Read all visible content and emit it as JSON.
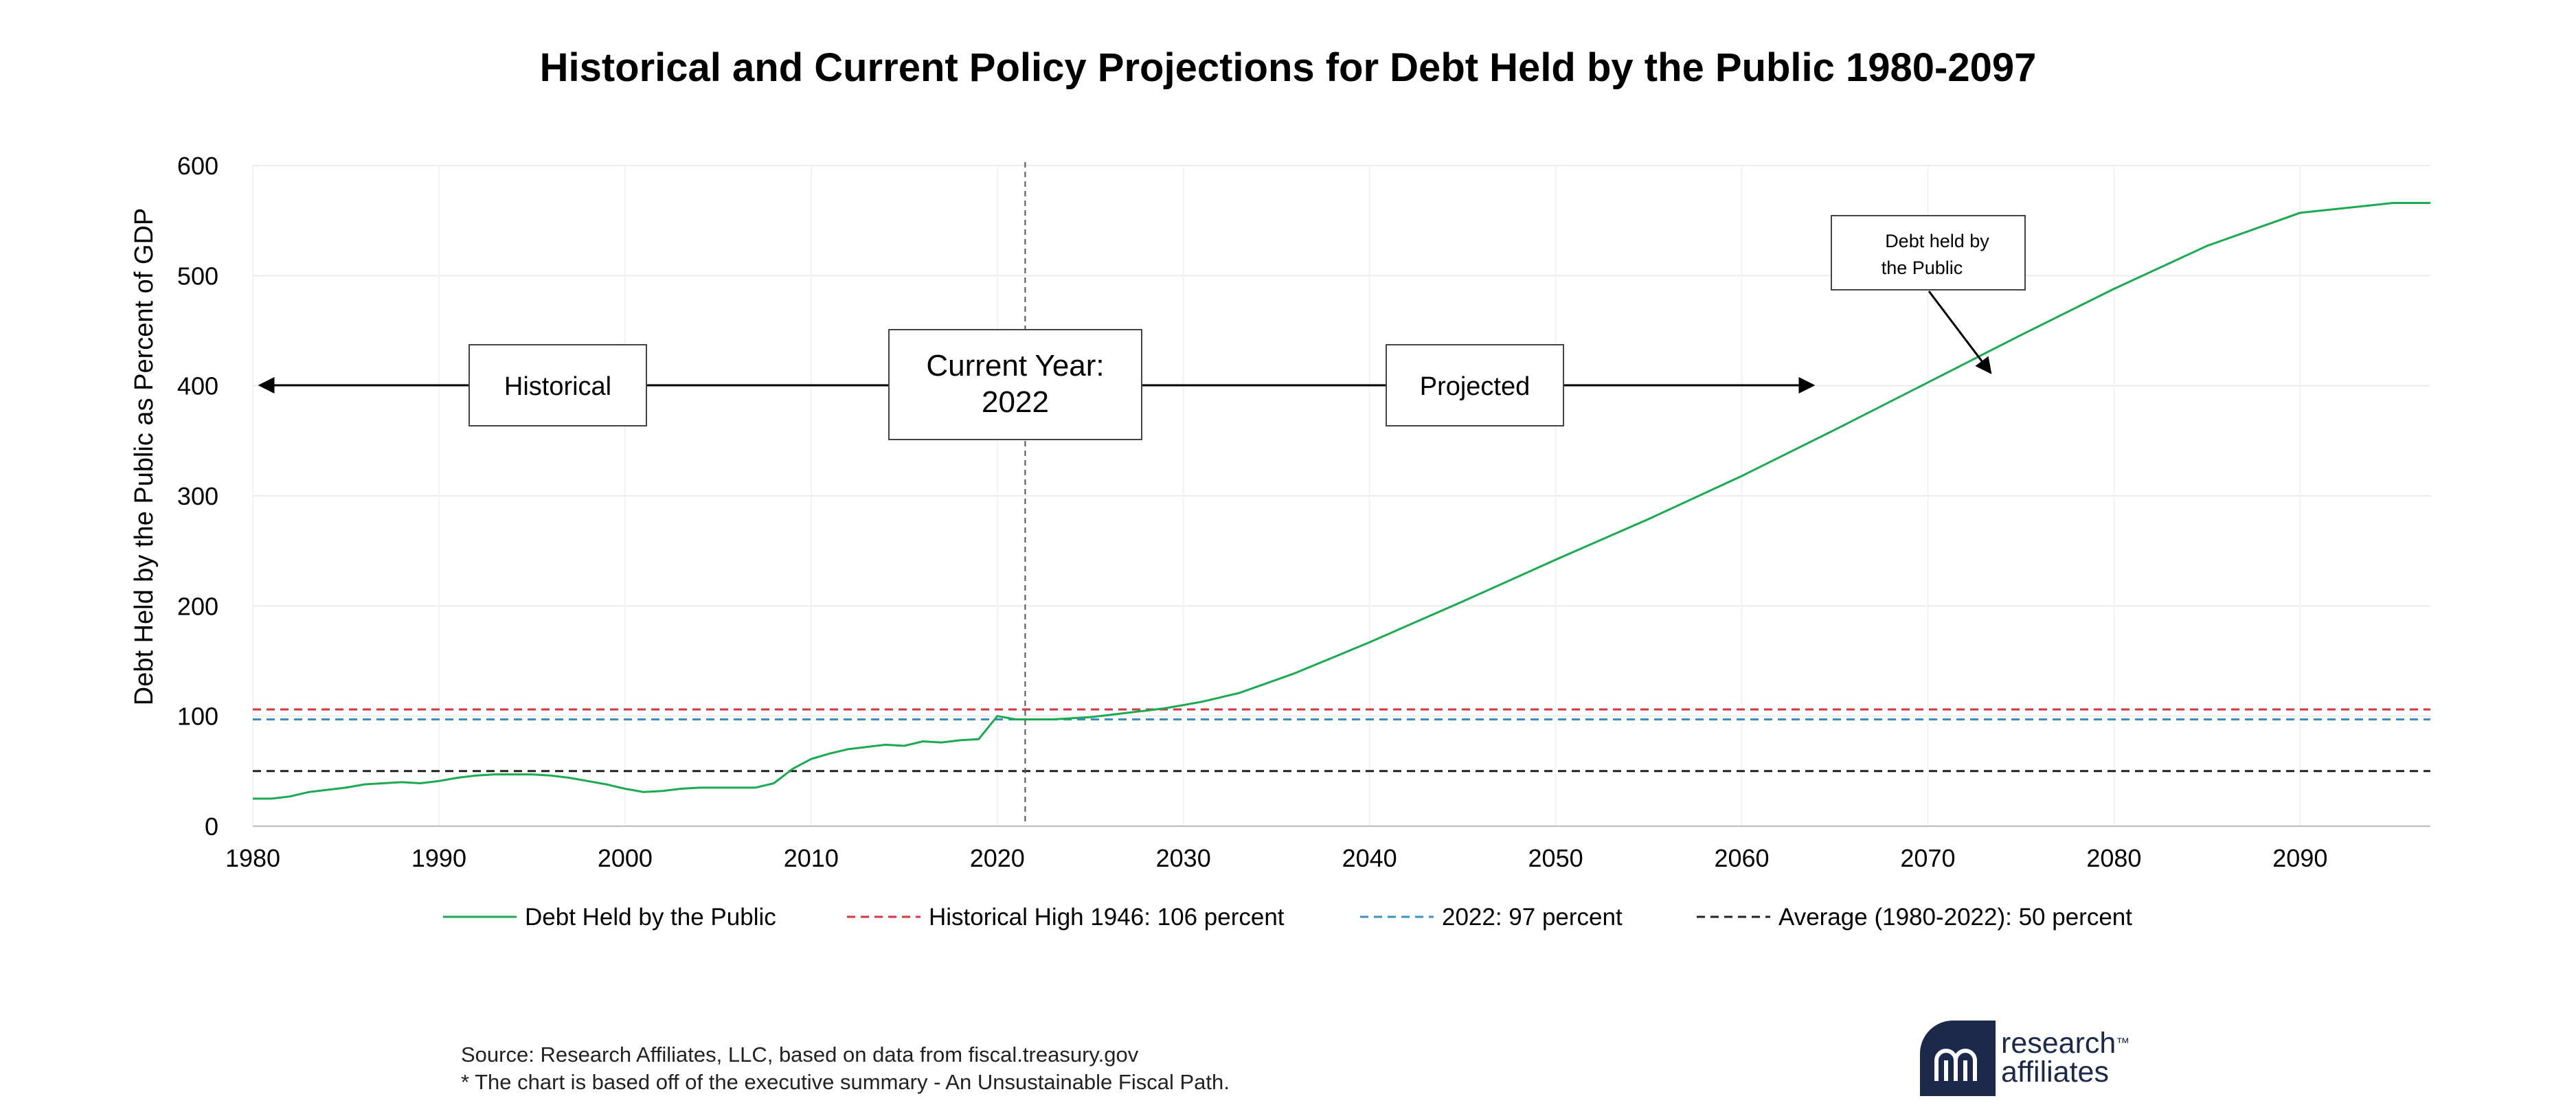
{
  "chart_data": {
    "type": "line",
    "title": "Historical and Current Policy Projections for Debt Held by the Public 1980-2097",
    "xlabel": "",
    "ylabel": "Debt Held by the Public as Percent of GDP",
    "xlim": [
      1980,
      2097
    ],
    "ylim": [
      0,
      600
    ],
    "x_ticks": [
      1980,
      1990,
      2000,
      2010,
      2020,
      2030,
      2040,
      2050,
      2060,
      2070,
      2080,
      2090
    ],
    "y_ticks": [
      0,
      100,
      200,
      300,
      400,
      500,
      600
    ],
    "grid": true,
    "legend_position": "bottom",
    "series": [
      {
        "name": "Debt Held by the Public",
        "color": "#1aaa50",
        "style": "solid",
        "x": [
          1980,
          1981,
          1982,
          1983,
          1984,
          1985,
          1986,
          1987,
          1988,
          1989,
          1990,
          1991,
          1992,
          1993,
          1994,
          1995,
          1996,
          1997,
          1998,
          1999,
          2000,
          2001,
          2002,
          2003,
          2004,
          2005,
          2006,
          2007,
          2008,
          2009,
          2010,
          2011,
          2012,
          2013,
          2014,
          2015,
          2016,
          2017,
          2018,
          2019,
          2020,
          2021,
          2022,
          2023,
          2024,
          2025,
          2026,
          2027,
          2028,
          2029,
          2030,
          2031,
          2032,
          2033,
          2034,
          2035,
          2036,
          2037,
          2038,
          2039,
          2040,
          2045,
          2050,
          2055,
          2060,
          2065,
          2070,
          2075,
          2080,
          2085,
          2090,
          2095,
          2097
        ],
        "y": [
          25,
          25,
          27,
          31,
          33,
          35,
          38,
          39,
          40,
          39,
          41,
          44,
          46,
          47,
          47,
          47,
          46,
          44,
          41,
          38,
          34,
          31,
          32,
          34,
          35,
          35,
          35,
          35,
          39,
          52,
          61,
          66,
          70,
          72,
          74,
          73,
          77,
          76,
          78,
          79,
          100,
          97,
          97,
          97,
          98,
          99,
          101,
          103,
          105,
          107,
          110,
          113,
          117,
          121,
          127,
          133,
          139,
          146,
          153,
          160,
          167,
          204,
          242,
          279,
          318,
          360,
          403,
          446,
          488,
          527,
          557,
          566,
          566
        ]
      },
      {
        "name": "Historical High 1946: 106 percent",
        "color": "#d9333f",
        "style": "dashed",
        "x": [
          1980,
          2097
        ],
        "y": [
          106,
          106
        ]
      },
      {
        "name": "2022: 97 percent",
        "color": "#3a8fc7",
        "style": "dashed",
        "x": [
          1980,
          2097
        ],
        "y": [
          97,
          97
        ]
      },
      {
        "name": "Average (1980-2022): 50 percent",
        "color": "#222222",
        "style": "dashed",
        "x": [
          1980,
          2097
        ],
        "y": [
          50,
          50
        ]
      }
    ],
    "annotations": {
      "historical": "Historical",
      "current_year_line1": "Current Year:",
      "current_year_line2": "2022",
      "current_year_x": 2021.5,
      "projected": "Projected",
      "callout_line1": "Debt held by",
      "callout_line2": "the Public"
    }
  },
  "footer": {
    "source": "Source: Research Affiliates, LLC, based on data from fiscal.treasury.gov",
    "note": "* The chart is based off of the executive summary - An Unsustainable Fiscal Path."
  },
  "logo": {
    "line1": "research",
    "trademark": "™",
    "line2": "affiliates",
    "color": "#1b2a4a"
  }
}
